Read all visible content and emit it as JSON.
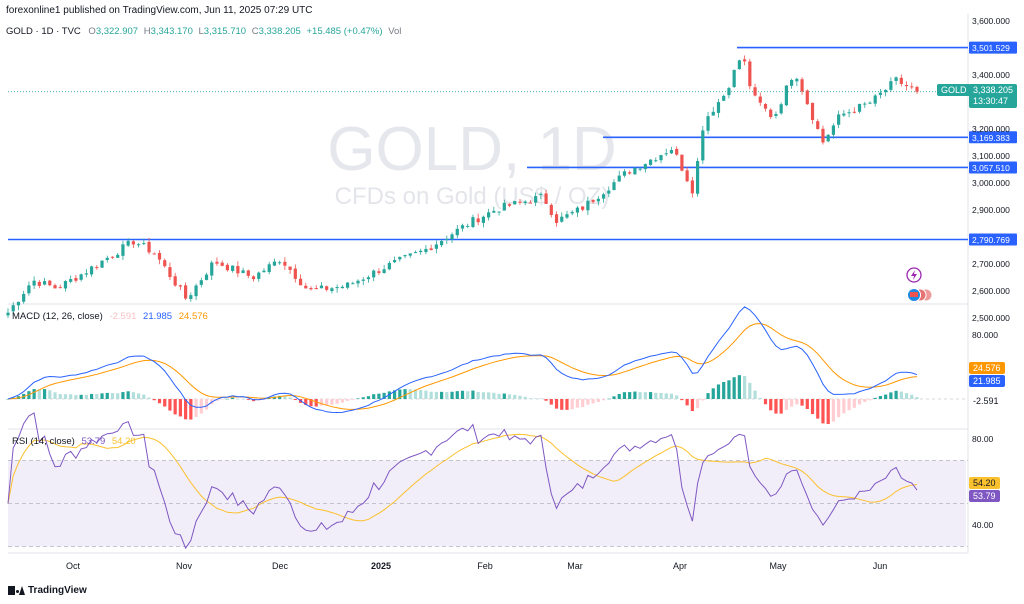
{
  "publish_line": "forexonline1 published on TradingView.com, Jun 11, 2025 07:29 UTC",
  "ohlc_line": {
    "symbol": "GOLD · 1D · TVC",
    "o_label": "O",
    "o": "3,322.907",
    "h_label": "H",
    "h": "3,343.170",
    "l_label": "L",
    "l": "3,315.710",
    "c_label": "C",
    "c": "3,338.205",
    "change": "+15.485 (+0.47%)",
    "vol": "Vol"
  },
  "watermark": {
    "symbol": "GOLD, 1D",
    "description": "CFDs on Gold (US$ / OZ)"
  },
  "price_tag": {
    "symbol": "GOLD",
    "price": "3,338.205",
    "countdown": "13:30:47"
  },
  "macd": {
    "title": "MACD (12, 26, close)",
    "hist": "-2.591",
    "macd": "21.985",
    "signal": "24.576"
  },
  "rsi": {
    "title": "RSI (14, close)",
    "rsi": "53.79",
    "ma": "54.20"
  },
  "brand": "TradingView",
  "colors": {
    "up": "#26a69a",
    "down": "#ef5350",
    "level": "#2962ff",
    "macd": "#2962ff",
    "signal": "#ff9800",
    "rsi": "#7e57c2",
    "rsi_ma": "#fbc02d"
  },
  "chart_data": {
    "type": "candlestick",
    "interval": "1D",
    "x_ticks": [
      "Oct",
      "Nov",
      "Dec",
      "2025",
      "Feb",
      "Mar",
      "Apr",
      "May",
      "Jun"
    ],
    "price_axis": {
      "ticks": [
        "3,600.000",
        "3,400.000",
        "3,200.000",
        "3,100.000",
        "3,000.000",
        "2,900.000",
        "2,700.000",
        "2,600.000",
        "2,500.000"
      ]
    },
    "horizontal_levels": [
      {
        "value": 3501.529,
        "label": "3,501.529"
      },
      {
        "value": 3169.383,
        "label": "3,169.383"
      },
      {
        "value": 3057.51,
        "label": "3,057.510"
      },
      {
        "value": 2790.769,
        "label": "2,790.769"
      }
    ],
    "close_path": [
      [
        "Sep 24",
        2520
      ],
      [
        "Oct 1",
        2640
      ],
      [
        "Oct 8",
        2610
      ],
      [
        "Oct 16",
        2670
      ],
      [
        "Oct 22",
        2720
      ],
      [
        "Oct 30",
        2785
      ],
      [
        "Nov 5",
        2740
      ],
      [
        "Nov 14",
        2570
      ],
      [
        "Nov 22",
        2710
      ],
      [
        "Dec 3",
        2650
      ],
      [
        "Dec 11",
        2720
      ],
      [
        "Dec 19",
        2600
      ],
      [
        "Dec 30",
        2620
      ],
      [
        "Jan 10",
        2690
      ],
      [
        "Jan 21",
        2750
      ],
      [
        "Feb 4",
        2860
      ],
      [
        "Feb 11",
        2905
      ],
      [
        "Feb 24",
        2950
      ],
      [
        "Feb 28",
        2860
      ],
      [
        "Mar 7",
        2905
      ],
      [
        "Mar 20",
        3040
      ],
      [
        "Apr 2",
        3130
      ],
      [
        "Apr 8",
        2970
      ],
      [
        "Apr 11",
        3230
      ],
      [
        "Apr 17",
        3330
      ],
      [
        "Apr 22",
        3480
      ],
      [
        "Apr 25",
        3320
      ],
      [
        "May 1",
        3240
      ],
      [
        "May 7",
        3420
      ],
      [
        "May 15",
        3150
      ],
      [
        "May 20",
        3250
      ],
      [
        "May 29",
        3300
      ],
      [
        "Jun 5",
        3380
      ],
      [
        "Jun 11",
        3338
      ]
    ],
    "indicators": {
      "macd_axis_ticks": [
        "80.000"
      ],
      "rsi_axis_ticks": [
        "80.00",
        "40.00"
      ]
    }
  }
}
